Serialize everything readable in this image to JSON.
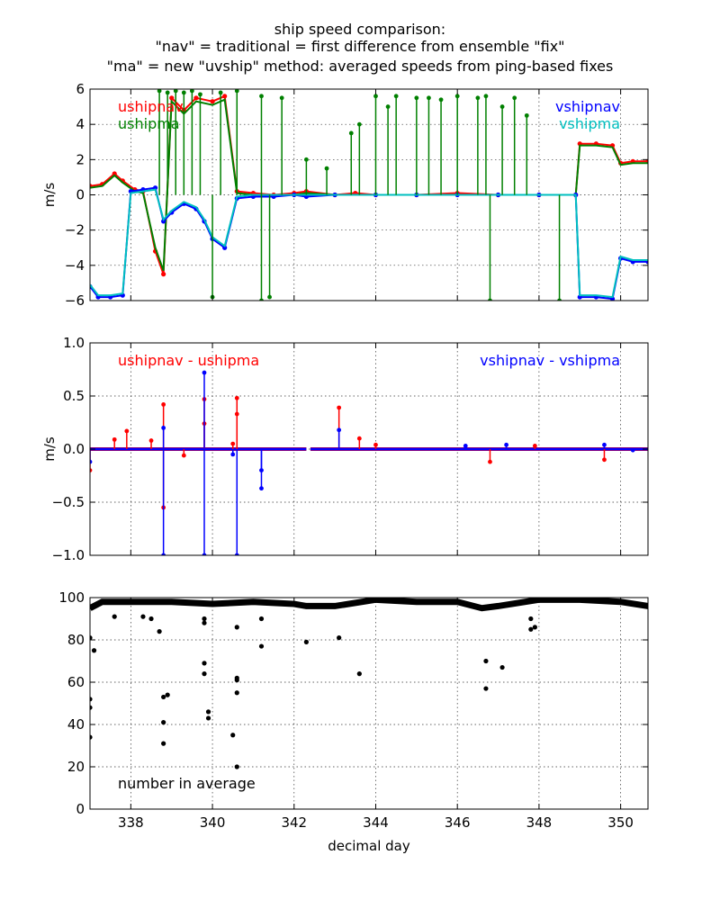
{
  "title_lines": [
    "ship speed comparison:",
    "\"nav\" = traditional = first difference from ensemble \"fix\"",
    "\"ma\" = new \"uvship\" method: averaged speeds from ping-based fixes"
  ],
  "chart_data": [
    {
      "type": "line",
      "ylabel": "m/s",
      "xlim": [
        337.0,
        350.67
      ],
      "ylim": [
        -6,
        6
      ],
      "xticks": [
        338,
        340,
        342,
        344,
        346,
        348,
        350
      ],
      "yticks": [
        -6,
        -4,
        -2,
        0,
        2,
        4,
        6
      ],
      "ytick_labels": [
        "−6",
        "−4",
        "−2",
        "0",
        "2",
        "4",
        "6"
      ],
      "grid": true,
      "legend_left": [
        {
          "label": "ushipnav",
          "color": "#ff0000"
        },
        {
          "label": "ushipma",
          "color": "#008000"
        }
      ],
      "legend_right": [
        {
          "label": "vshipnav",
          "color": "#0000ff"
        },
        {
          "label": "vshipma",
          "color": "#00bfbf"
        }
      ],
      "series": [
        {
          "name": "ushipnav",
          "color": "#ff0000",
          "marker": true,
          "x": [
            337.0,
            337.3,
            337.6,
            337.8,
            338.1,
            338.3,
            338.6,
            338.8,
            339.0,
            339.3,
            339.6,
            340.0,
            340.3,
            340.6,
            341.0,
            341.5,
            342.0,
            342.3,
            343.0,
            343.5,
            344.0,
            345.0,
            346.0,
            347.0,
            348.0,
            348.9,
            349.0,
            349.4,
            349.8,
            350.0,
            350.3,
            350.67
          ],
          "y": [
            0.5,
            0.6,
            1.2,
            0.8,
            0.3,
            0.2,
            -3.2,
            -4.5,
            5.5,
            4.8,
            5.5,
            5.3,
            5.6,
            0.2,
            0.1,
            0.0,
            0.1,
            0.2,
            0.0,
            0.1,
            0.0,
            0.0,
            0.1,
            0.0,
            0.0,
            0.0,
            2.9,
            2.9,
            2.8,
            1.8,
            1.9,
            1.9
          ]
        },
        {
          "name": "ushipma",
          "color": "#008000",
          "marker": false,
          "x": [
            337.0,
            337.3,
            337.6,
            337.8,
            338.1,
            338.3,
            338.6,
            338.8,
            339.0,
            339.3,
            339.6,
            340.0,
            340.3,
            340.6,
            341.0,
            341.5,
            342.0,
            342.3,
            343.0,
            343.5,
            344.0,
            345.0,
            346.0,
            347.0,
            348.0,
            348.9,
            349.0,
            349.4,
            349.8,
            350.0,
            350.3,
            350.67
          ],
          "y": [
            0.4,
            0.5,
            1.1,
            0.7,
            0.2,
            0.1,
            -3.0,
            -4.3,
            5.3,
            4.6,
            5.3,
            5.1,
            5.4,
            0.1,
            0.0,
            0.0,
            0.0,
            0.1,
            0.0,
            0.0,
            0.0,
            0.0,
            0.0,
            0.0,
            0.0,
            0.0,
            2.8,
            2.8,
            2.7,
            1.7,
            1.8,
            1.8
          ]
        },
        {
          "name": "vshipnav",
          "color": "#0000ff",
          "marker": true,
          "x": [
            337.0,
            337.2,
            337.5,
            337.8,
            338.0,
            338.3,
            338.6,
            338.8,
            339.0,
            339.3,
            339.6,
            339.8,
            340.0,
            340.3,
            340.6,
            341.0,
            341.5,
            342.0,
            342.3,
            343.0,
            344.0,
            345.0,
            346.0,
            347.0,
            348.0,
            348.9,
            349.0,
            349.4,
            349.8,
            350.0,
            350.3,
            350.67
          ],
          "y": [
            -5.2,
            -5.8,
            -5.8,
            -5.7,
            0.2,
            0.3,
            0.4,
            -1.5,
            -1.0,
            -0.5,
            -0.8,
            -1.5,
            -2.5,
            -3.0,
            -0.2,
            -0.1,
            -0.1,
            0.0,
            -0.1,
            0.0,
            0.0,
            0.0,
            0.0,
            0.0,
            0.0,
            0.0,
            -5.8,
            -5.8,
            -5.9,
            -3.6,
            -3.8,
            -3.8
          ]
        },
        {
          "name": "vshipma",
          "color": "#00bfbf",
          "marker": false,
          "x": [
            337.0,
            337.2,
            337.5,
            337.8,
            338.0,
            338.3,
            338.6,
            338.8,
            339.0,
            339.3,
            339.6,
            339.8,
            340.0,
            340.3,
            340.6,
            341.0,
            341.5,
            342.0,
            342.3,
            343.0,
            344.0,
            345.0,
            346.0,
            347.0,
            348.0,
            348.9,
            349.0,
            349.4,
            349.8,
            350.0,
            350.3,
            350.67
          ],
          "y": [
            -5.1,
            -5.7,
            -5.7,
            -5.6,
            0.1,
            0.2,
            0.3,
            -1.4,
            -0.9,
            -0.4,
            -0.7,
            -1.4,
            -2.4,
            -2.9,
            -0.1,
            0.0,
            0.0,
            0.0,
            0.0,
            0.0,
            0.0,
            0.0,
            0.0,
            0.0,
            0.0,
            0.0,
            -5.7,
            -5.7,
            -5.8,
            -3.5,
            -3.7,
            -3.7
          ]
        }
      ],
      "spikes": [
        {
          "series": "ushipma",
          "color": "#008000",
          "x": [
            338.7,
            338.9,
            339.1,
            339.3,
            339.5,
            339.7,
            340.2,
            340.6,
            341.2,
            341.7,
            342.3,
            342.8,
            343.4,
            343.6,
            344.0,
            344.3,
            344.5,
            345.0,
            345.3,
            345.6,
            346.0,
            346.5,
            346.7,
            347.1,
            347.4,
            347.7
          ],
          "y": [
            5.9,
            5.8,
            5.9,
            5.8,
            5.9,
            5.7,
            5.8,
            5.9,
            5.6,
            5.5,
            2.0,
            1.5,
            3.5,
            4.0,
            5.6,
            5.0,
            5.6,
            5.5,
            5.5,
            5.4,
            5.6,
            5.5,
            5.6,
            5.0,
            5.5,
            4.5
          ]
        },
        {
          "series": "ushipma",
          "color": "#008000",
          "x": [
            340.0,
            341.2,
            341.4,
            346.8,
            348.5
          ],
          "y": [
            -5.8,
            -6.0,
            -5.8,
            -6.0,
            -6.0
          ]
        }
      ]
    },
    {
      "type": "line",
      "ylabel": "m/s",
      "xlim": [
        337.0,
        350.67
      ],
      "ylim": [
        -1.0,
        1.0
      ],
      "xticks": [
        338,
        340,
        342,
        344,
        346,
        348,
        350
      ],
      "yticks": [
        -1.0,
        -0.5,
        0.0,
        0.5,
        1.0
      ],
      "ytick_labels": [
        "−1.0",
        "−0.5",
        "0.0",
        "0.5",
        "1.0"
      ],
      "grid": true,
      "legend_left": [
        {
          "label": "ushipnav - ushipma",
          "color": "#ff0000"
        }
      ],
      "legend_right": [
        {
          "label": "vshipnav - vshipma",
          "color": "#0000ff"
        }
      ],
      "baseline": {
        "x": [
          337.0,
          342.3,
          342.4,
          350.67
        ],
        "y": [
          0.0,
          0.0,
          0.0,
          0.0
        ]
      },
      "spikes": [
        {
          "series": "ushipnav - ushipma",
          "color": "#ff0000",
          "x": [
            337.0,
            337.6,
            337.9,
            338.5,
            338.8,
            338.8,
            339.3,
            339.8,
            339.8,
            340.5,
            340.6,
            340.6,
            343.1,
            343.6,
            344.0,
            346.8,
            347.9,
            349.6
          ],
          "y": [
            -0.2,
            0.09,
            0.17,
            0.08,
            0.42,
            -0.55,
            -0.06,
            0.47,
            0.24,
            0.05,
            0.48,
            0.33,
            0.39,
            0.1,
            0.04,
            -0.12,
            0.03,
            -0.1
          ]
        },
        {
          "series": "vshipnav - vshipma",
          "color": "#0000ff",
          "x": [
            337.0,
            338.8,
            338.8,
            339.8,
            339.8,
            340.5,
            340.6,
            341.2,
            341.2,
            343.1,
            346.2,
            347.2,
            349.6,
            350.3
          ],
          "y": [
            -0.12,
            0.2,
            -1.0,
            0.72,
            -1.0,
            -0.05,
            -1.0,
            -0.2,
            -0.37,
            0.18,
            0.03,
            0.04,
            0.04,
            -0.01
          ]
        }
      ]
    },
    {
      "type": "scatter",
      "xlabel": "decimal day",
      "xlim": [
        337.0,
        350.67
      ],
      "ylim": [
        0,
        100
      ],
      "xticks": [
        338,
        340,
        342,
        344,
        346,
        348,
        350
      ],
      "xtick_labels": [
        "338",
        "340",
        "342",
        "344",
        "346",
        "348",
        "350"
      ],
      "yticks": [
        0,
        20,
        40,
        60,
        80,
        100
      ],
      "ytick_labels": [
        "0",
        "20",
        "40",
        "60",
        "80",
        "100"
      ],
      "grid": true,
      "annotation": "number in average",
      "series": [
        {
          "name": "number in average",
          "color": "#000000",
          "x": [
            337.0,
            337.0,
            337.0,
            337.1,
            337.0,
            337.6,
            338.3,
            338.5,
            338.7,
            338.8,
            338.8,
            338.8,
            338.9,
            339.8,
            339.8,
            339.8,
            339.8,
            339.9,
            339.9,
            340.5,
            340.6,
            340.6,
            340.6,
            340.6,
            340.6,
            341.2,
            341.2,
            342.3,
            343.1,
            343.6,
            346.7,
            346.7,
            347.1,
            347.8,
            347.8,
            347.9
          ],
          "y": [
            34,
            48,
            52,
            75,
            81,
            91,
            91,
            90,
            84,
            53,
            41,
            31,
            54,
            69,
            64,
            90,
            88,
            46,
            43,
            35,
            20,
            55,
            61,
            62,
            86,
            77,
            90,
            79,
            81,
            64,
            70,
            57,
            67,
            85,
            90,
            86
          ]
        },
        {
          "name": "number in average",
          "color": "#000000",
          "band": true,
          "x": [
            337.0,
            337.3,
            338.0,
            339.0,
            340.0,
            341.0,
            342.0,
            342.3,
            343.0,
            344.0,
            345.0,
            346.0,
            346.6,
            347.0,
            348.0,
            349.0,
            350.0,
            350.67
          ],
          "y": [
            95,
            98,
            98,
            98,
            97,
            98,
            97,
            96,
            96,
            99,
            98,
            98,
            95,
            96,
            99,
            99,
            98,
            96
          ]
        }
      ]
    }
  ]
}
